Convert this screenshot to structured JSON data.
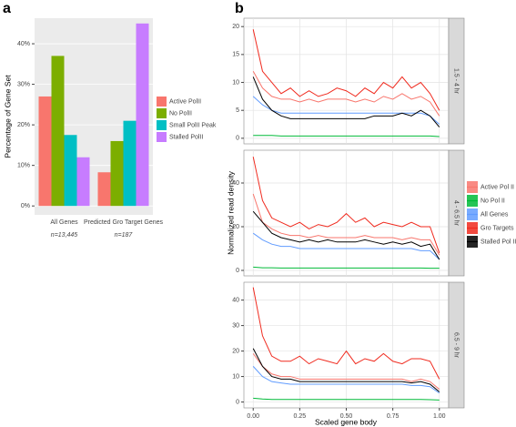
{
  "chart_data": [
    {
      "type": "bar",
      "panel_label": "a",
      "y_label": "Percentage of Gene Set",
      "categories": [
        "All Genes",
        "Predicted Gro Target Genes"
      ],
      "category_notes": [
        "n=13,445",
        "n=187"
      ],
      "series": [
        {
          "name": "Active PolII",
          "color": "#F8766D",
          "values": [
            27,
            8.3
          ]
        },
        {
          "name": "No PolII",
          "color": "#7CAE00",
          "values": [
            37,
            16
          ]
        },
        {
          "name": "Small PolII Peak",
          "color": "#00BFC4",
          "values": [
            17.5,
            21
          ]
        },
        {
          "name": "Stalled PolII",
          "color": "#C77CFF",
          "values": [
            12,
            45
          ]
        }
      ],
      "ylim": [
        -2.2,
        46.3
      ],
      "yticks": [
        {
          "value": 0,
          "label": "0%"
        },
        {
          "value": 10,
          "label": "10%"
        },
        {
          "value": 20,
          "label": "20%"
        },
        {
          "value": 30,
          "label": "30%"
        },
        {
          "value": 40,
          "label": "40%"
        }
      ],
      "grid": true
    },
    {
      "type": "line",
      "panel_label": "b",
      "x_label": "Scaled gene body",
      "y_label": "Normalized read density",
      "x": [
        0,
        0.05,
        0.1,
        0.15,
        0.2,
        0.25,
        0.3,
        0.35,
        0.4,
        0.45,
        0.5,
        0.55,
        0.6,
        0.65,
        0.7,
        0.75,
        0.8,
        0.85,
        0.9,
        0.95,
        1
      ],
      "xlim": [
        -0.05,
        1.05
      ],
      "xticks": [
        {
          "value": 0,
          "label": "0.00"
        },
        {
          "value": 0.25,
          "label": "0.25"
        },
        {
          "value": 0.5,
          "label": "0.50"
        },
        {
          "value": 0.75,
          "label": "0.75"
        },
        {
          "value": 1,
          "label": "1.00"
        }
      ],
      "series": [
        {
          "name": "Active Pol II",
          "color": "#F8766D"
        },
        {
          "name": "No Pol II",
          "color": "#00BA38"
        },
        {
          "name": "All Genes",
          "color": "#619CFF"
        },
        {
          "name": "Gro Targets",
          "color": "#F02A1E"
        },
        {
          "name": "Stalled Pol II",
          "color": "#000000"
        }
      ],
      "grid": true,
      "panels": [
        {
          "strip": "1.5 - 4 hr",
          "ylim": [
            -1,
            21.5
          ],
          "yticks": [
            0,
            5,
            10,
            15,
            20
          ],
          "values": [
            [
              12,
              9,
              7.5,
              7,
              7,
              6.5,
              7,
              6.5,
              7,
              7,
              7,
              6.5,
              7,
              6.5,
              7.5,
              7,
              8,
              7,
              7.5,
              6.5,
              4
            ],
            [
              0.5,
              0.5,
              0.5,
              0.4,
              0.4,
              0.4,
              0.4,
              0.4,
              0.4,
              0.4,
              0.4,
              0.4,
              0.4,
              0.4,
              0.4,
              0.4,
              0.4,
              0.4,
              0.4,
              0.4,
              0.3
            ],
            [
              7.5,
              6,
              5,
              4.5,
              4.5,
              4.5,
              4.5,
              4.5,
              4.5,
              4.5,
              4.5,
              4.5,
              4.5,
              4.5,
              4.5,
              4.5,
              4.5,
              4.5,
              4.5,
              4,
              2.5
            ],
            [
              19.5,
              12,
              10,
              8,
              9,
              7.5,
              8.5,
              7.5,
              8,
              9,
              8.5,
              7.5,
              9,
              8,
              10,
              9,
              11,
              9,
              10,
              8,
              5
            ],
            [
              11,
              7,
              5,
              4,
              3.5,
              3.5,
              3.5,
              3.5,
              3.5,
              3.5,
              3.5,
              3.5,
              3.5,
              4,
              4,
              4,
              4.5,
              4,
              5,
              4,
              2
            ]
          ]
        },
        {
          "strip": "4 - 6.5 hr",
          "ylim": [
            -2.5,
            55
          ],
          "yticks": [
            0,
            20,
            40
          ],
          "values": [
            [
              35,
              22,
              19,
              17,
              16,
              16,
              15,
              16,
              15,
              15,
              15,
              15,
              16,
              15,
              15,
              15,
              14,
              15,
              14,
              14,
              7
            ],
            [
              1.5,
              1.2,
              1.2,
              1.1,
              1.1,
              1.1,
              1.1,
              1.1,
              1.1,
              1.1,
              1.1,
              1.1,
              1.1,
              1.1,
              1.1,
              1.1,
              1.1,
              1.1,
              1.1,
              1,
              1
            ],
            [
              17,
              14,
              12,
              11,
              11,
              10,
              10,
              10,
              10,
              10,
              10,
              10,
              10,
              10,
              10,
              10,
              10,
              10,
              9,
              9,
              5
            ],
            [
              52,
              32,
              24,
              22,
              20,
              22,
              19,
              21,
              20,
              22,
              26,
              22,
              24,
              20,
              22,
              21,
              20,
              22,
              20,
              20,
              8
            ],
            [
              27,
              22,
              17,
              15,
              14,
              13,
              14,
              13,
              14,
              13,
              13,
              13,
              14,
              13,
              12,
              13,
              12,
              13,
              11,
              12,
              5
            ]
          ]
        },
        {
          "strip": "6.5 - 9 hr",
          "ylim": [
            -2.3,
            47
          ],
          "yticks": [
            0,
            10,
            20,
            30,
            40
          ],
          "values": [
            [
              19,
              14,
              11,
              10,
              10,
              9,
              9,
              9,
              9,
              9,
              9,
              9,
              9,
              9,
              9,
              9,
              9,
              8,
              9,
              8,
              5
            ],
            [
              1.5,
              1.2,
              1,
              1,
              1,
              1,
              1,
              1,
              1,
              1,
              1,
              1,
              1,
              1,
              1,
              1,
              1,
              1,
              1,
              0.9,
              0.8
            ],
            [
              14,
              10,
              8,
              7.5,
              7,
              7,
              7,
              7,
              7,
              7,
              7,
              7,
              7,
              7,
              7,
              7,
              7,
              6.5,
              6.5,
              6,
              3.5
            ],
            [
              45,
              26,
              18,
              16,
              16,
              18,
              15,
              17,
              16,
              15,
              20,
              15,
              17,
              16,
              19,
              16,
              15,
              17,
              17,
              16,
              9
            ],
            [
              21,
              14,
              10,
              9,
              9,
              8,
              8,
              8,
              8,
              8,
              8,
              8,
              8,
              8,
              8,
              8,
              8,
              7.5,
              8,
              7,
              4
            ]
          ]
        }
      ]
    }
  ]
}
